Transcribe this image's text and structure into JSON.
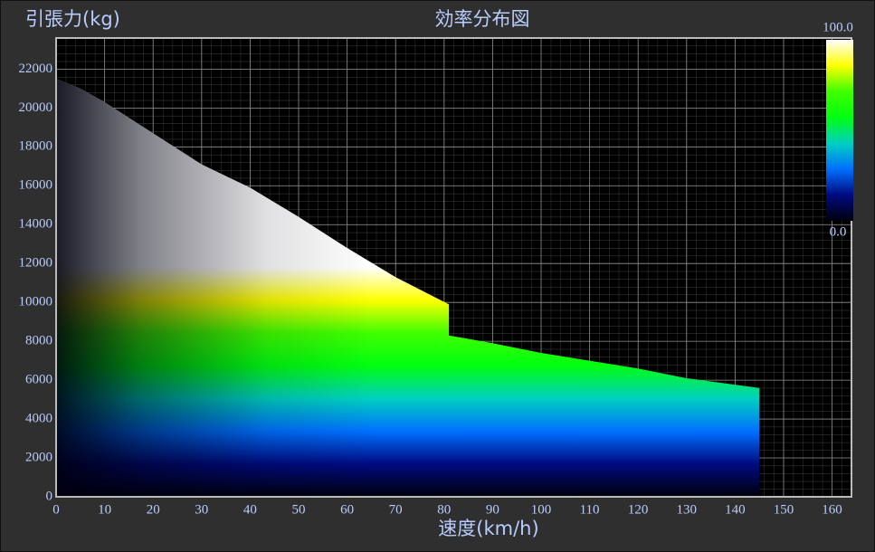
{
  "chart_data": {
    "type": "envelope-heatmap",
    "title": "効率分布図",
    "y_label": "引張力(kg)",
    "x_label": "速度(km/h)",
    "envelope": {
      "x": [
        0,
        5,
        10,
        20,
        30,
        40,
        50,
        60,
        70,
        81,
        81,
        90,
        100,
        110,
        120,
        130,
        145
      ],
      "values": [
        21500,
        21000,
        20300,
        18700,
        17100,
        15900,
        14400,
        12800,
        11300,
        9900,
        8300,
        7900,
        7400,
        7000,
        6600,
        6100,
        5600
      ]
    },
    "xlim": [
      0,
      164
    ],
    "xticks": [
      0,
      10,
      20,
      30,
      40,
      50,
      60,
      70,
      80,
      90,
      100,
      110,
      120,
      130,
      140,
      150,
      160
    ],
    "ylim": [
      0,
      23600
    ],
    "yticks": [
      0,
      2000,
      4000,
      6000,
      8000,
      10000,
      12000,
      14000,
      16000,
      18000,
      20000,
      22000
    ],
    "grid": true,
    "colorbar": {
      "range": [
        {
          "value": 0,
          "label": "0.0"
        },
        {
          "value": 100,
          "label": "100.0"
        }
      ],
      "colors": [
        "#00000c",
        "#000a80",
        "#0070ff",
        "#00d0c0",
        "#00ff10",
        "#40ff00",
        "#ffff00",
        "#ffffff"
      ]
    }
  }
}
